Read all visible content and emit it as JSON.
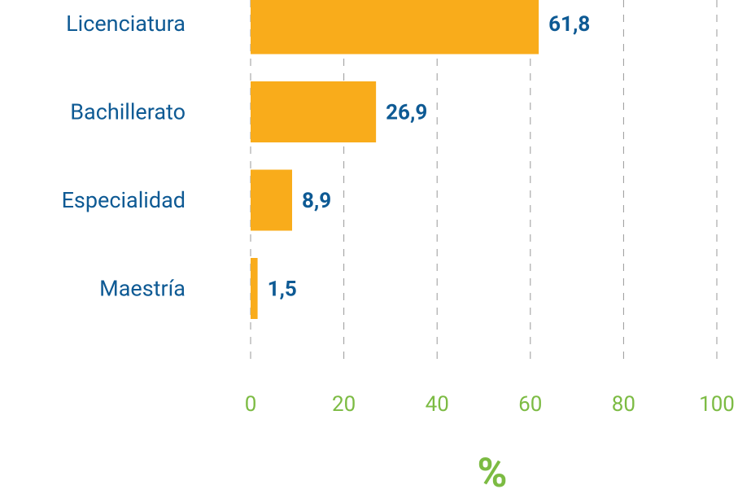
{
  "chart_data": {
    "type": "hbar",
    "categories": [
      "Licenciatura",
      "Bachillerato",
      "Especialidad",
      "Maestría"
    ],
    "values": [
      61.8,
      26.9,
      8.9,
      1.5
    ],
    "value_labels": [
      "61,8",
      "26,9",
      "8,9",
      "1,5"
    ],
    "color": "#f9ac1b",
    "xlim": [
      0,
      100
    ],
    "xticks": [
      0,
      20,
      40,
      60,
      80,
      100
    ],
    "x_label": "%",
    "grid": true
  }
}
